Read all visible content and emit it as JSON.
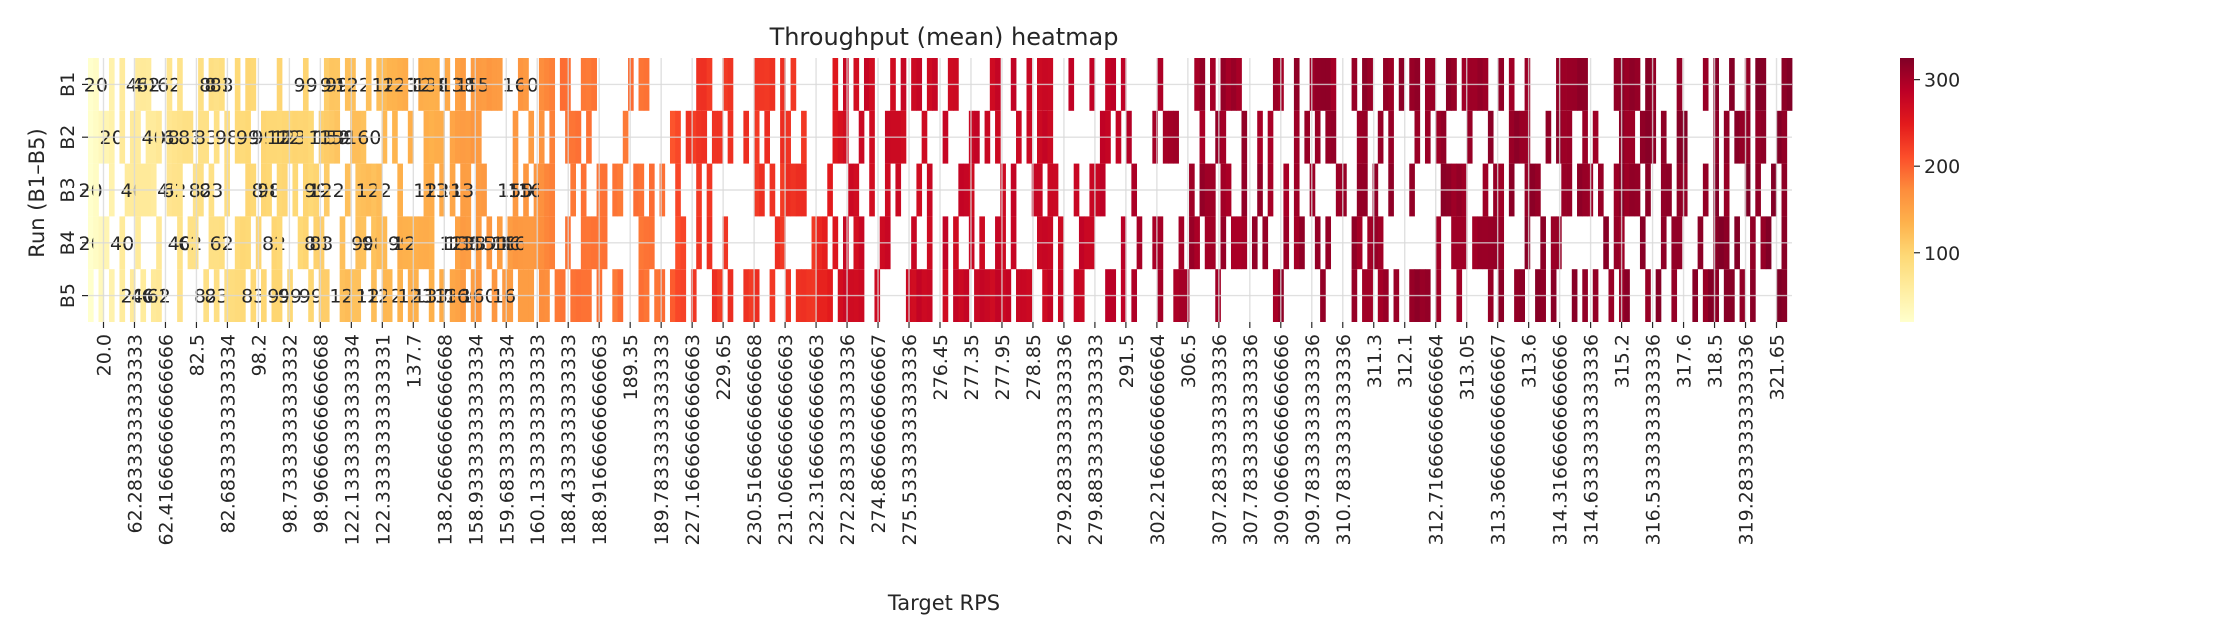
{
  "chart_data": {
    "type": "heatmap",
    "title": "Throughput (mean) heatmap",
    "xlabel": "Target RPS",
    "ylabel": "Run (B1–B5)",
    "rows": [
      "B1",
      "B2",
      "B3",
      "B4",
      "B5"
    ],
    "x_tick_labels": [
      "20.0",
      "62.28333333333333",
      "62.416666666666666",
      "82.5",
      "82.68333333333334",
      "98.2",
      "98.73333333333332",
      "98.96666666666668",
      "122.13333333333334",
      "122.33333333333331",
      "137.7",
      "138.26666666666668",
      "158.93333333333334",
      "159.68333333333334",
      "160.13333333333333",
      "188.43333333333333",
      "188.91666666666663",
      "189.35",
      "189.78333333333333",
      "227.16666666666663",
      "229.65",
      "230.51666666666668",
      "231.06666666666663",
      "232.31666666666663",
      "272.28333333333336",
      "274.8666666666667",
      "275.53333333333336",
      "276.45",
      "277.35",
      "277.95",
      "278.85",
      "279.28333333333336",
      "279.88333333333333",
      "291.5",
      "302.21666666666664",
      "306.5",
      "307.28333333333336",
      "307.78333333333336",
      "309.06666666666666",
      "309.78333333333336",
      "310.78333333333336",
      "311.3",
      "312.1",
      "312.71666666666664",
      "313.05",
      "313.36666666666667",
      "313.6",
      "314.31666666666666",
      "314.63333333333336",
      "315.2",
      "316.53333333333336",
      "317.6",
      "318.5",
      "319.28333333333336",
      "321.65"
    ],
    "colorbar_ticks": [
      100,
      200,
      300
    ],
    "value_range": [
      20,
      325
    ],
    "colormap": [
      "#ffffcc",
      "#ffeda0",
      "#fed976",
      "#feb24c",
      "#fd8d3c",
      "#fc4e2a",
      "#e31a1c",
      "#bd0026",
      "#800026"
    ],
    "grid": true,
    "cell_labels": {
      "B1": [
        "20",
        "40",
        "40",
        "62",
        "62",
        "83",
        "83",
        "83",
        "99",
        "99",
        "99",
        "122",
        "122",
        "123",
        "123",
        "138",
        "138",
        "159",
        "159",
        "160",
        "160"
      ],
      "B2": [
        "20",
        "40",
        "62",
        "82",
        "83",
        "83",
        "98",
        "99",
        "99",
        "122",
        "122",
        "122",
        "137",
        "138",
        "159",
        "159",
        "160"
      ],
      "B3": [
        "20",
        "40",
        "40",
        "62",
        "82",
        "83",
        "83",
        "98",
        "99",
        "122",
        "122",
        "122",
        "138",
        "138",
        "159",
        "159",
        "160",
        "160"
      ],
      "B4": [
        "20",
        "40",
        "40",
        "62",
        "62",
        "82",
        "83",
        "83",
        "98",
        "98",
        "99",
        "122",
        "122",
        "138",
        "138",
        "159",
        "159",
        "160",
        "160",
        "161"
      ],
      "B5": [
        "20",
        "40",
        "62",
        "62",
        "82",
        "83",
        "83",
        "99",
        "99",
        "99",
        "122",
        "122",
        "122",
        "123",
        "137",
        "138",
        "138",
        "160",
        "160",
        "161"
      ]
    }
  }
}
